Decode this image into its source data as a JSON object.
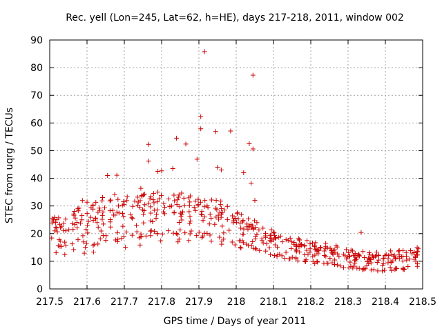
{
  "chart_data": {
    "type": "scatter",
    "title": "Rec. yell (Lon=245, Lat=62, h=HE), days 217-218, 2011, window 002",
    "xlabel": "GPS time / Days of year 2011",
    "ylabel": "STEC from uqrg / TECUs",
    "xlim": [
      217.5,
      218.5
    ],
    "ylim": [
      0,
      90
    ],
    "xticks": [
      "217.5",
      "217.6",
      "217.7",
      "217.8",
      "217.9",
      "218",
      "218.1",
      "218.2",
      "218.3",
      "218.4",
      "218.5"
    ],
    "yticks": [
      "0",
      "10",
      "20",
      "30",
      "40",
      "50",
      "60",
      "70",
      "80",
      "90"
    ],
    "grid": true,
    "marker": "plus",
    "color": "#cc0000",
    "outliers": [
      [
        217.915,
        85.8
      ],
      [
        218.045,
        77.3
      ],
      [
        217.905,
        62.3
      ],
      [
        217.905,
        57.9
      ],
      [
        217.945,
        56.9
      ],
      [
        217.985,
        57.1
      ],
      [
        217.84,
        54.5
      ],
      [
        217.765,
        52.3
      ],
      [
        217.865,
        52.4
      ],
      [
        218.035,
        52.5
      ],
      [
        218.045,
        50.6
      ],
      [
        217.895,
        46.9
      ],
      [
        217.765,
        46.2
      ],
      [
        218.02,
        42.0
      ],
      [
        217.95,
        44.0
      ],
      [
        217.96,
        43.0
      ],
      [
        217.8,
        42.7
      ],
      [
        217.79,
        42.5
      ],
      [
        217.83,
        43.5
      ],
      [
        217.655,
        41.0
      ],
      [
        217.68,
        41.1
      ],
      [
        218.04,
        38.2
      ],
      [
        218.05,
        32.0
      ],
      [
        218.335,
        20.4
      ]
    ],
    "trend": [
      [
        217.5,
        12.0,
        27.0
      ],
      [
        217.55,
        12.5,
        31.0
      ],
      [
        217.6,
        13.0,
        34.0
      ],
      [
        217.65,
        14.0,
        36.0
      ],
      [
        217.7,
        15.0,
        37.0
      ],
      [
        217.75,
        16.0,
        38.0
      ],
      [
        217.8,
        17.0,
        38.0
      ],
      [
        217.85,
        17.0,
        37.0
      ],
      [
        217.9,
        17.0,
        36.0
      ],
      [
        217.95,
        16.5,
        34.0
      ],
      [
        218.0,
        15.0,
        30.0
      ],
      [
        218.05,
        13.5,
        26.0
      ],
      [
        218.1,
        11.5,
        22.0
      ],
      [
        218.15,
        10.0,
        20.0
      ],
      [
        218.2,
        9.0,
        18.0
      ],
      [
        218.25,
        8.5,
        17.0
      ],
      [
        218.3,
        7.5,
        15.0
      ],
      [
        218.35,
        6.5,
        14.0
      ],
      [
        218.4,
        6.5,
        14.0
      ],
      [
        218.45,
        7.0,
        15.0
      ],
      [
        218.5,
        8.5,
        15.5
      ]
    ],
    "n_tracks": 30,
    "points_per_track": 19
  }
}
